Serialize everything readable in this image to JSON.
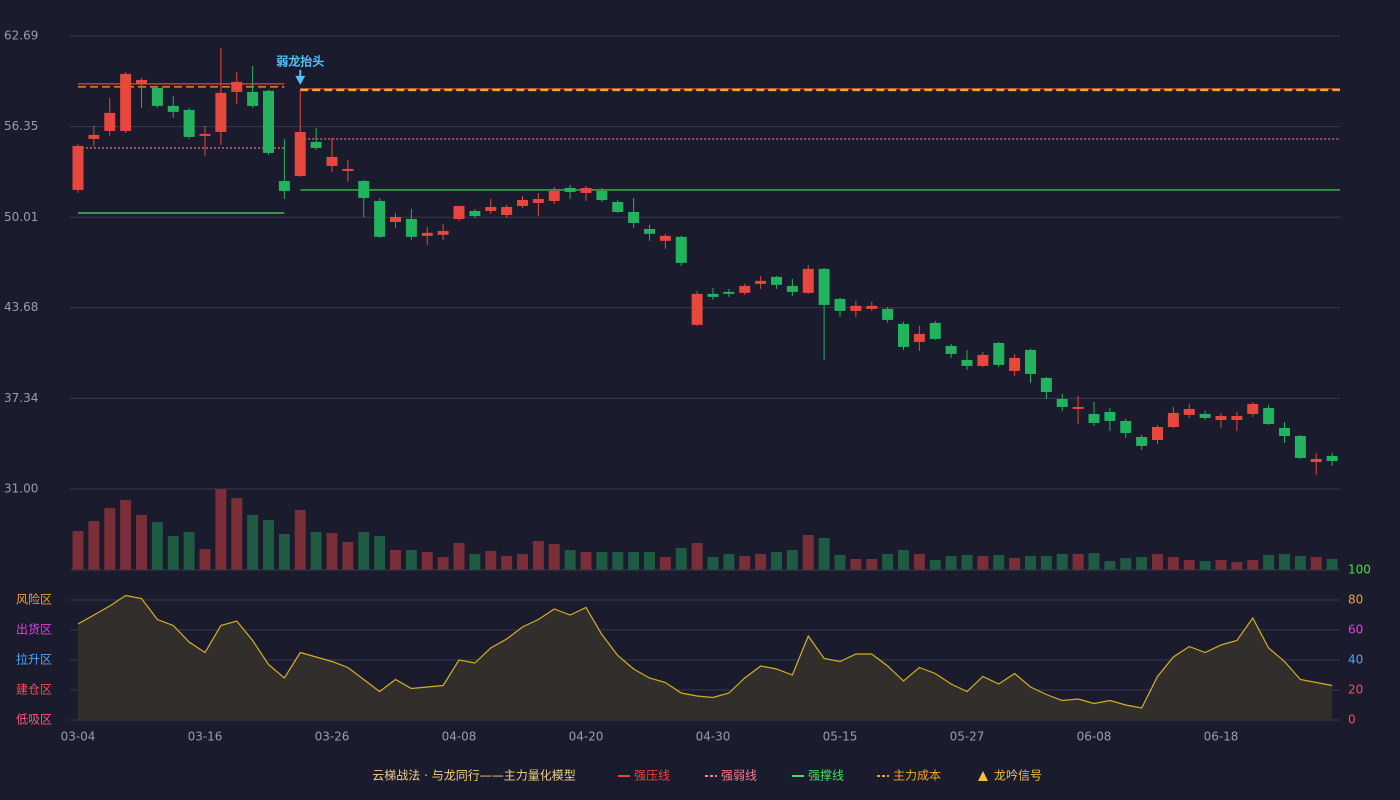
{
  "chart_data": {
    "type": "candlestick",
    "categories": [
      "03-04",
      null,
      null,
      null,
      null,
      null,
      null,
      null,
      "03-16",
      null,
      null,
      null,
      null,
      null,
      null,
      null,
      "03-26",
      null,
      null,
      null,
      null,
      null,
      null,
      null,
      "04-08",
      null,
      null,
      null,
      null,
      null,
      null,
      null,
      "04-20",
      null,
      null,
      null,
      null,
      null,
      null,
      null,
      "04-30",
      null,
      null,
      null,
      null,
      null,
      null,
      null,
      "05-15",
      null,
      null,
      null,
      null,
      null,
      null,
      null,
      "05-27",
      null,
      null,
      null,
      null,
      null,
      null,
      null,
      "06-08",
      null,
      null,
      null,
      null,
      null,
      null,
      null,
      "06-18",
      null,
      null,
      null,
      null,
      null,
      null,
      null
    ],
    "open": [
      51.92,
      55.49,
      56.05,
      56.05,
      59.34,
      59.06,
      57.8,
      57.52,
      55.7,
      55.98,
      58.78,
      58.78,
      58.85,
      52.55,
      52.9,
      55.28,
      53.6,
      53.25,
      52.55,
      51.15,
      49.68,
      49.89,
      48.71,
      48.78,
      49.89,
      50.45,
      50.45,
      50.17,
      50.8,
      51.01,
      51.15,
      52.06,
      51.71,
      51.85,
      51.08,
      50.38,
      49.19,
      48.36,
      48.64,
      42.48,
      44.65,
      44.79,
      44.72,
      45.35,
      45.84,
      45.21,
      44.72,
      46.4,
      44.3,
      43.46,
      43.6,
      43.6,
      42.55,
      41.29,
      42.62,
      41.01,
      40.03,
      39.61,
      41.22,
      39.26,
      40.73,
      38.77,
      37.3,
      36.6,
      36.25,
      36.39,
      35.76,
      34.64,
      34.43,
      35.34,
      36.18,
      36.25,
      35.83,
      35.83,
      36.25,
      36.67,
      35.27,
      34.71,
      32.89,
      33.31
    ],
    "high": [
      55.14,
      56.4,
      58.36,
      60.18,
      59.76,
      59.2,
      58.5,
      57.66,
      56.4,
      61.86,
      60.18,
      60.6,
      58.92,
      55.49,
      58.92,
      56.26,
      55.56,
      54.02,
      52.62,
      51.36,
      50.31,
      50.59,
      49.34,
      49.54,
      50.8,
      50.59,
      51.29,
      50.87,
      51.5,
      51.71,
      52.13,
      52.27,
      52.2,
      52.06,
      51.22,
      51.36,
      49.48,
      48.85,
      48.71,
      44.86,
      45.07,
      45.0,
      45.35,
      45.91,
      45.91,
      45.7,
      46.68,
      46.47,
      44.37,
      44.16,
      44.09,
      43.74,
      42.69,
      42.41,
      42.76,
      41.15,
      40.73,
      40.59,
      41.29,
      40.45,
      40.8,
      38.84,
      37.65,
      37.51,
      37.09,
      36.67,
      35.9,
      34.78,
      35.48,
      36.74,
      36.95,
      36.46,
      36.32,
      36.39,
      37.09,
      36.88,
      35.69,
      34.78,
      33.52,
      33.52
    ],
    "low": [
      51.71,
      55.0,
      55.7,
      55.91,
      57.66,
      57.66,
      56.96,
      55.49,
      54.3,
      55.07,
      57.94,
      57.66,
      54.37,
      51.29,
      52.83,
      54.72,
      53.18,
      52.48,
      50.01,
      48.57,
      49.27,
      48.43,
      48.08,
      48.43,
      49.75,
      49.96,
      50.24,
      49.96,
      50.66,
      50.1,
      50.94,
      51.29,
      51.15,
      51.08,
      50.31,
      49.27,
      48.36,
      47.8,
      46.61,
      42.41,
      44.23,
      44.44,
      44.58,
      45.0,
      45.0,
      44.51,
      44.65,
      40.03,
      43.04,
      43.04,
      43.46,
      42.62,
      40.73,
      40.66,
      41.43,
      40.17,
      39.33,
      39.54,
      39.54,
      38.91,
      38.42,
      37.3,
      36.46,
      35.55,
      35.41,
      35.06,
      34.57,
      33.73,
      34.15,
      35.27,
      35.97,
      35.83,
      35.27,
      35.06,
      36.04,
      35.48,
      34.22,
      33.1,
      31.98,
      32.61
    ],
    "close": [
      55.0,
      55.77,
      57.31,
      60.04,
      59.62,
      57.8,
      57.38,
      55.63,
      55.84,
      58.71,
      59.48,
      57.8,
      54.51,
      51.85,
      55.98,
      54.86,
      54.23,
      53.39,
      51.36,
      48.64,
      50.03,
      48.64,
      48.92,
      49.05,
      50.8,
      50.1,
      50.73,
      50.73,
      51.22,
      51.29,
      51.85,
      51.78,
      52.06,
      51.22,
      50.38,
      49.61,
      48.85,
      48.71,
      46.82,
      44.65,
      44.44,
      44.65,
      45.21,
      45.56,
      45.28,
      44.79,
      46.4,
      43.88,
      43.46,
      43.81,
      43.81,
      42.83,
      40.94,
      41.85,
      41.5,
      40.45,
      39.61,
      40.38,
      39.68,
      40.17,
      39.05,
      37.79,
      36.74,
      36.74,
      35.62,
      35.76,
      34.92,
      34.01,
      35.34,
      36.32,
      36.6,
      35.97,
      36.11,
      36.11,
      36.95,
      35.55,
      34.71,
      33.17,
      33.1,
      32.96
    ],
    "up_color": "#e8473d",
    "down_color": "#22b35e",
    "ylim": [
      31,
      62.69
    ],
    "yticks": [
      {
        "value": 31,
        "label": "31.00"
      },
      37.34,
      43.68,
      50.01,
      56.35,
      62.69
    ],
    "grid": true,
    "volume": {
      "values": [
        39,
        49,
        62,
        70,
        55,
        48,
        34,
        38,
        21,
        81,
        72,
        55,
        50,
        36,
        60,
        38,
        37,
        28,
        38,
        34,
        20,
        20,
        18,
        13,
        27,
        16,
        19,
        14,
        16,
        29,
        26,
        20,
        18,
        18,
        18,
        18,
        18,
        13,
        22,
        27,
        13,
        16,
        14,
        16,
        18,
        20,
        35,
        32,
        15,
        11,
        11,
        16,
        20,
        16,
        10,
        14,
        15,
        14,
        15,
        12,
        14,
        14,
        16,
        16,
        17,
        9,
        12,
        13,
        16,
        13,
        10,
        9,
        10,
        8,
        10,
        15,
        16,
        14,
        13,
        11
      ],
      "up_color": "#7a2e38",
      "down_color": "#1f5a42"
    },
    "levels": [
      {
        "name": "强压线",
        "color": "#e8453c",
        "dash": "solid",
        "segments": [
          {
            "start": 0,
            "end": 13,
            "value": 59.34
          },
          {
            "start": 14,
            "end": 79,
            "value": 58.99
          }
        ]
      },
      {
        "name": "强弱线",
        "color": "#ff7a8a",
        "dash": "dotted",
        "segments": [
          {
            "start": 0,
            "end": 13,
            "value": 54.86
          },
          {
            "start": 14,
            "end": 79,
            "value": 55.49
          }
        ]
      },
      {
        "name": "强撑线",
        "color": "#4ade5a",
        "dash": "solid",
        "segments": [
          {
            "start": 0,
            "end": 13,
            "value": 50.31
          },
          {
            "start": 14,
            "end": 79,
            "value": 51.92
          }
        ]
      },
      {
        "name": "主力成本",
        "color": "#f5a623",
        "dash": "dashed",
        "segments": [
          {
            "start": 0,
            "end": 13,
            "value": 59.13
          },
          {
            "start": 14,
            "end": 79,
            "value": 58.92
          }
        ]
      }
    ],
    "annotations": [
      {
        "text": "弱龙抬头",
        "index": 14,
        "color": "#4fc3f7"
      }
    ],
    "signal": {
      "name": "龙吟信号",
      "color": "#f0c040"
    },
    "legend_title": "云梯战法 · 与龙同行——主力量化模型",
    "indicator": {
      "values": [
        64,
        70,
        76,
        83,
        81,
        67,
        63,
        52,
        45,
        63,
        66,
        53,
        37,
        28,
        45,
        42,
        39,
        35,
        27,
        19,
        27,
        21,
        22,
        23,
        40,
        38,
        48,
        54,
        62,
        67,
        74,
        70,
        75,
        57,
        43,
        34,
        28,
        25,
        18,
        16,
        15,
        18,
        28,
        36,
        34,
        30,
        56,
        41,
        39,
        44,
        44,
        36,
        26,
        35,
        31,
        24,
        19,
        29,
        24,
        31,
        22,
        17,
        13,
        14,
        11,
        13,
        10,
        8,
        29,
        42,
        49,
        45,
        50,
        53,
        68,
        48,
        39,
        27,
        25,
        23
      ],
      "color": "#d4b020",
      "ylim": [
        0,
        100
      ],
      "yticks": [
        0,
        20,
        40,
        60,
        80,
        100
      ],
      "tick_colors": [
        "#ff4d4d",
        "#ff4d4d",
        "#4da6ff",
        "#e040e0",
        "#f0a030",
        "#40e040"
      ],
      "zones": [
        {
          "label": "低吸区",
          "value": 0,
          "color": "#ff5577"
        },
        {
          "label": "建仓区",
          "value": 20,
          "color": "#ff4d4d"
        },
        {
          "label": "拉升区",
          "value": 40,
          "color": "#4da6ff"
        },
        {
          "label": "出货区",
          "value": 60,
          "color": "#e040e0"
        },
        {
          "label": "风险区",
          "value": 80,
          "color": "#f0a030"
        }
      ]
    }
  }
}
